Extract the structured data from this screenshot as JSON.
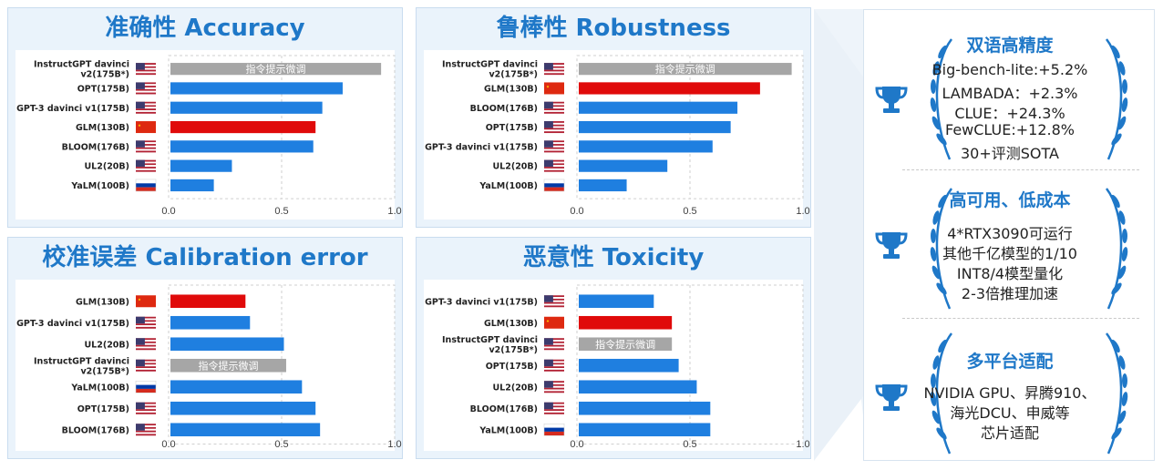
{
  "colors": {
    "accent": "#1f78c8",
    "blue_bar": "#1f7fe0",
    "red_bar": "#e00a0a",
    "gray_bar": "#a6a6a6"
  },
  "chart_data": [
    {
      "type": "bar",
      "orientation": "horizontal",
      "title": "准确性 Accuracy",
      "xlim": [
        0,
        1.0
      ],
      "xticks": [
        "0.0",
        "0.5",
        "1.0"
      ],
      "categories": [
        "InstructGPT davinci v2(175B*)",
        "OPT(175B)",
        "GPT-3 davinci v1(175B)",
        "GLM(130B)",
        "BLOOM(176B)",
        "UL2(20B)",
        "YaLM(100B)"
      ],
      "values": [
        0.94,
        0.77,
        0.68,
        0.65,
        0.64,
        0.28,
        0.2
      ],
      "flags": [
        "us",
        "us",
        "us",
        "cn",
        "us",
        "us",
        "ru"
      ],
      "bar_colors": [
        "gray",
        "blue",
        "blue",
        "red",
        "blue",
        "blue",
        "blue"
      ],
      "bar_labels": [
        "指令提示微调",
        "",
        "",
        "",
        "",
        "",
        ""
      ]
    },
    {
      "type": "bar",
      "orientation": "horizontal",
      "title": "鲁棒性 Robustness",
      "xlim": [
        0,
        1.0
      ],
      "xticks": [
        "0.0",
        "0.5",
        "1.0"
      ],
      "categories": [
        "InstructGPT davinci v2(175B*)",
        "GLM(130B)",
        "BLOOM(176B)",
        "OPT(175B)",
        "GPT-3 davinci v1(175B)",
        "UL2(20B)",
        "YaLM(100B)"
      ],
      "values": [
        0.95,
        0.81,
        0.71,
        0.68,
        0.6,
        0.4,
        0.22
      ],
      "flags": [
        "us",
        "cn",
        "us",
        "us",
        "us",
        "us",
        "ru"
      ],
      "bar_colors": [
        "gray",
        "red",
        "blue",
        "blue",
        "blue",
        "blue",
        "blue"
      ],
      "bar_labels": [
        "指令提示微调",
        "",
        "",
        "",
        "",
        "",
        ""
      ]
    },
    {
      "type": "bar",
      "orientation": "horizontal",
      "title": "校准误差 Calibration error",
      "xlim": [
        0,
        1.0
      ],
      "xticks": [
        "0.0",
        "0.5",
        "1.0"
      ],
      "categories": [
        "GLM(130B)",
        "GPT-3 davinci v1(175B)",
        "UL2(20B)",
        "InstructGPT davinci v2(175B*)",
        "YaLM(100B)",
        "OPT(175B)",
        "BLOOM(176B)"
      ],
      "values": [
        0.34,
        0.36,
        0.51,
        0.52,
        0.59,
        0.65,
        0.67
      ],
      "flags": [
        "cn",
        "us",
        "us",
        "us",
        "ru",
        "us",
        "us"
      ],
      "bar_colors": [
        "red",
        "blue",
        "blue",
        "gray",
        "blue",
        "blue",
        "blue"
      ],
      "bar_labels": [
        "",
        "",
        "",
        "指令提示微调",
        "",
        "",
        ""
      ]
    },
    {
      "type": "bar",
      "orientation": "horizontal",
      "title": "恶意性 Toxicity",
      "xlim": [
        0,
        1.0
      ],
      "xticks": [
        "0.0",
        "0.5",
        "1.0"
      ],
      "categories": [
        "GPT-3 davinci v1(175B)",
        "GLM(130B)",
        "InstructGPT davinci v2(175B*)",
        "OPT(175B)",
        "UL2(20B)",
        "BLOOM(176B)",
        "YaLM(100B)"
      ],
      "values": [
        0.34,
        0.42,
        0.42,
        0.45,
        0.53,
        0.59,
        0.59
      ],
      "flags": [
        "us",
        "cn",
        "us",
        "us",
        "us",
        "us",
        "ru"
      ],
      "bar_colors": [
        "blue",
        "red",
        "gray",
        "blue",
        "blue",
        "blue",
        "blue"
      ],
      "bar_labels": [
        "",
        "",
        "指令提示微调",
        "",
        "",
        "",
        ""
      ]
    }
  ],
  "highlights": [
    {
      "title": "双语高精度",
      "lines": [
        "Big-bench-lite:+5.2%",
        "LAMBADA：+2.3%",
        "CLUE：+24.3%",
        "FewCLUE:+12.8%",
        "30+评测SOTA"
      ]
    },
    {
      "title": "高可用、低成本",
      "lines": [
        "4*RTX3090可运行",
        "其他千亿模型的1/10",
        "INT8/4模型量化",
        "2-3倍推理加速"
      ]
    },
    {
      "title": "多平台适配",
      "lines": [
        "NVIDIA GPU、昇腾910、",
        "海光DCU、申威等",
        "芯片适配"
      ]
    }
  ]
}
